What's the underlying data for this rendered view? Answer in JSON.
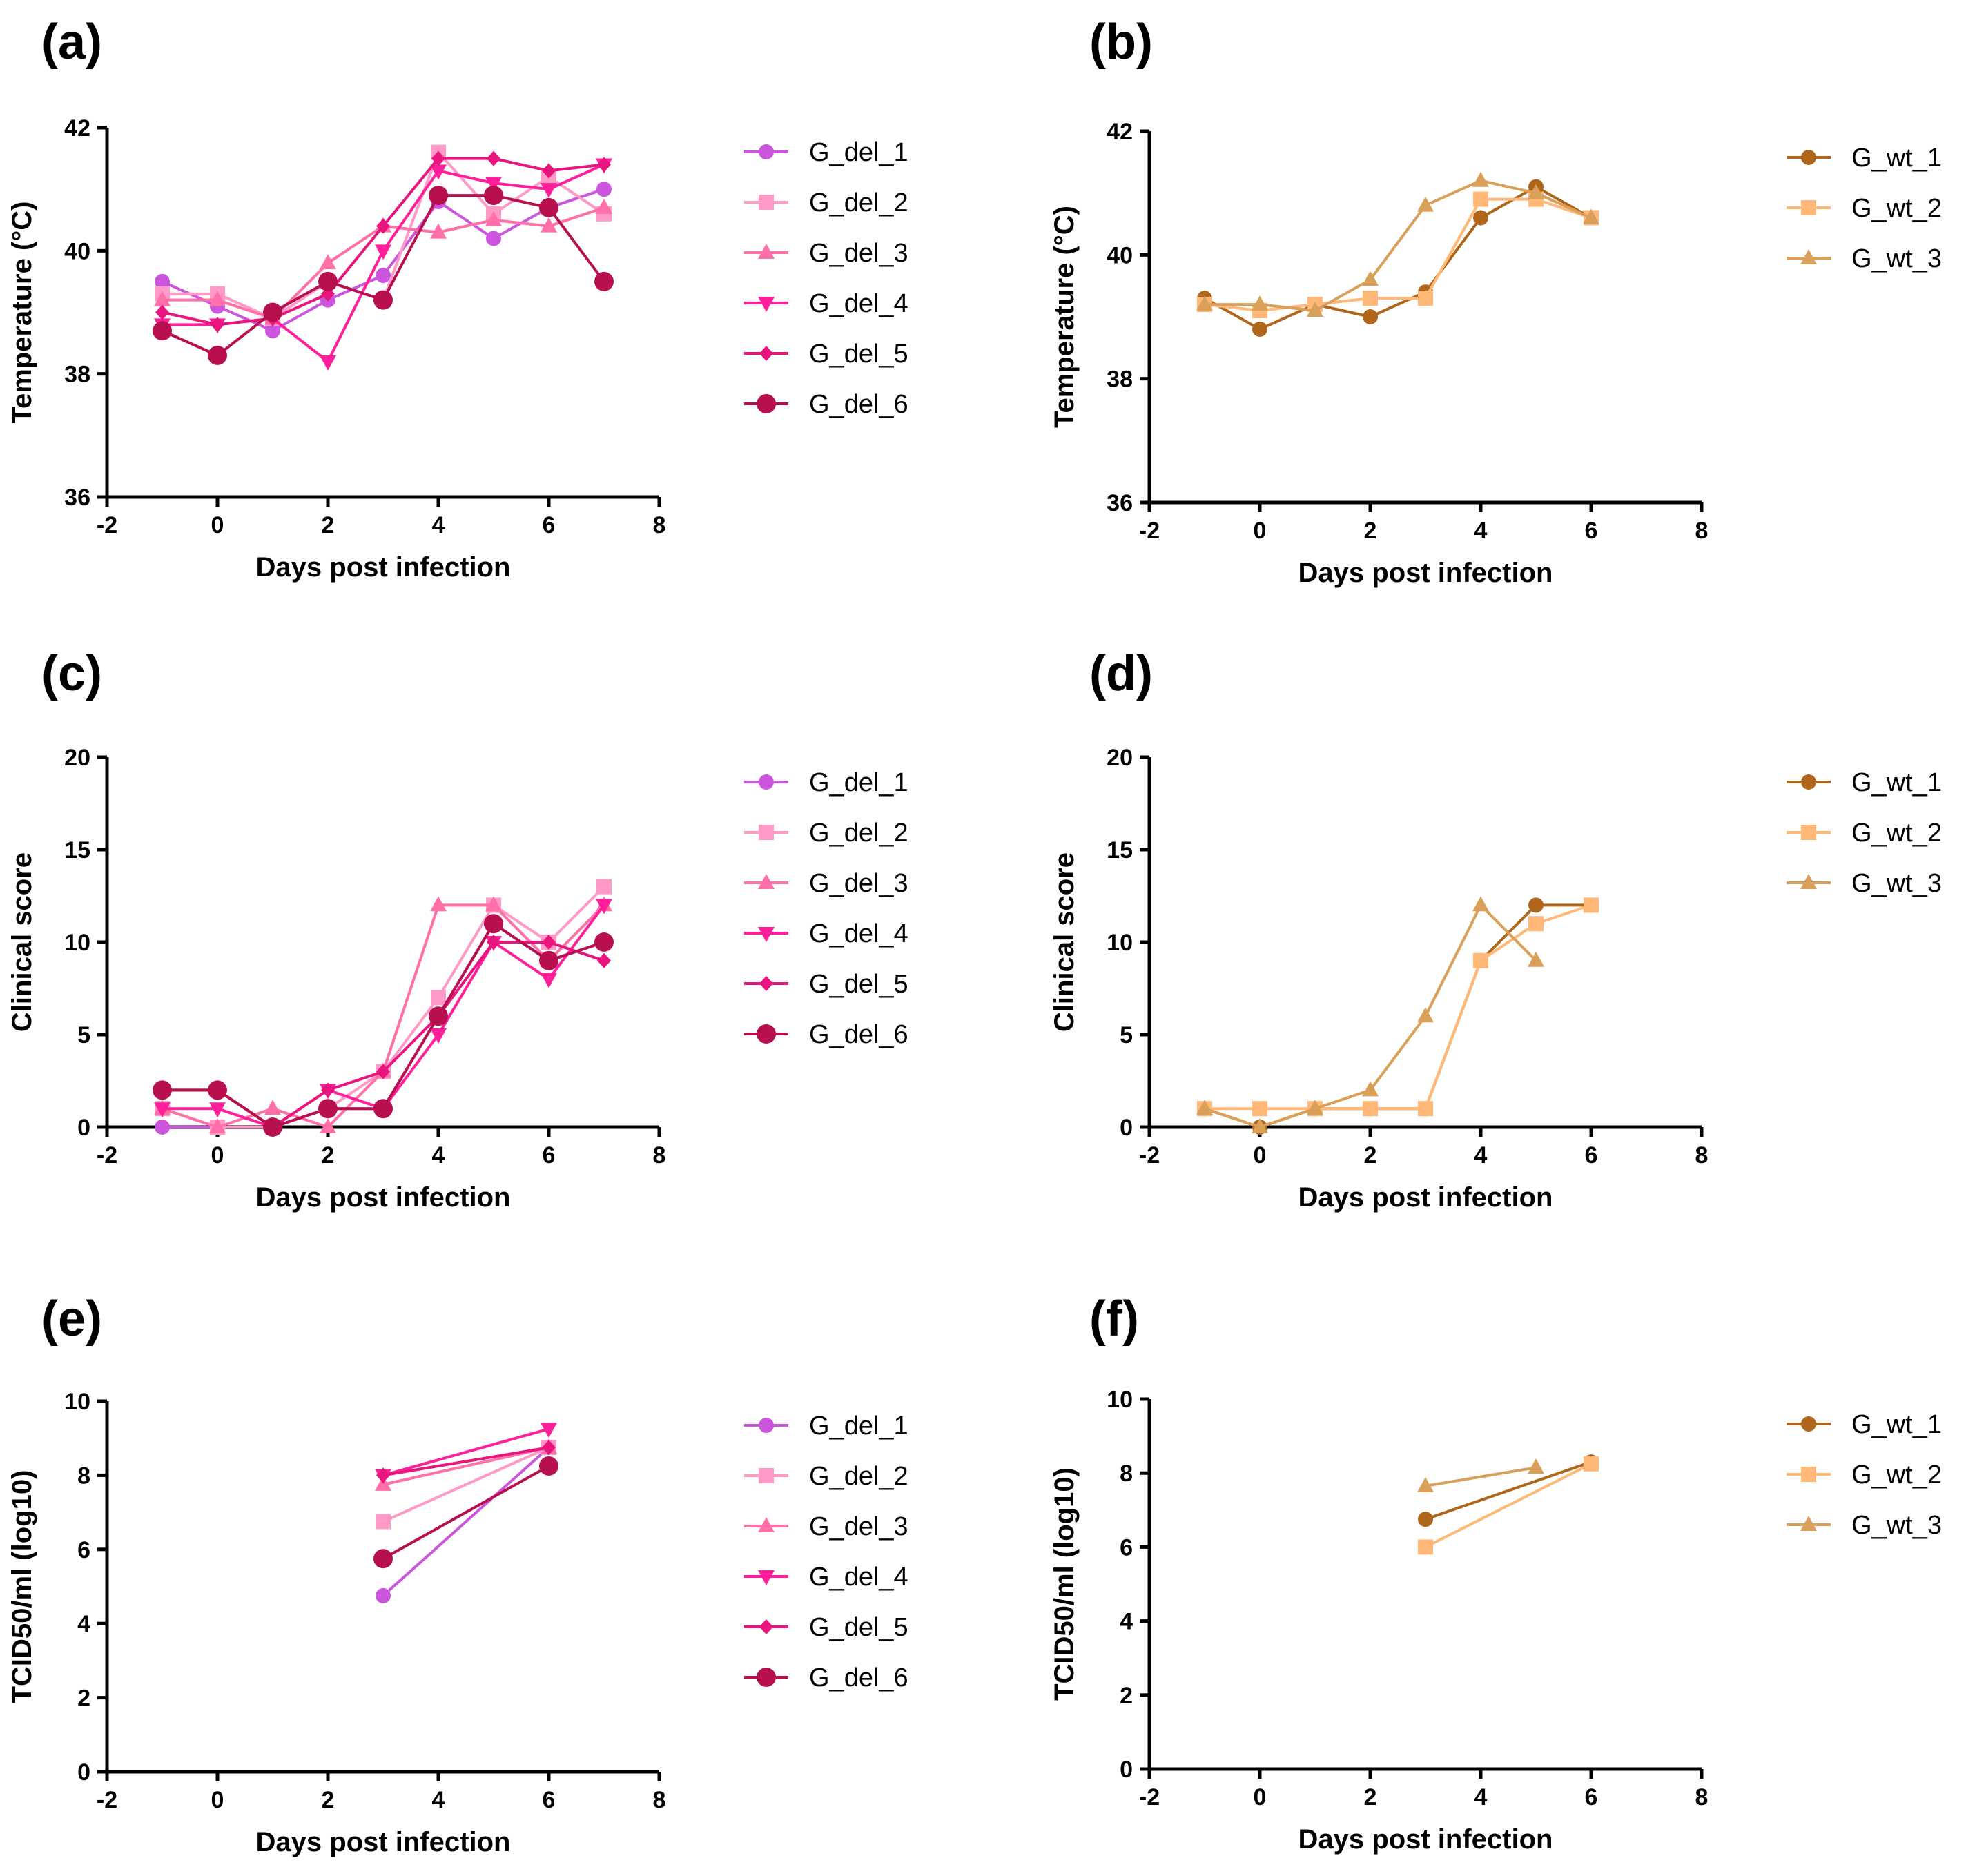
{
  "figure": {
    "series_styles": {
      "G_del_1": {
        "color": "#cc55dd",
        "marker": "circle"
      },
      "G_del_2": {
        "color": "#ff99c8",
        "marker": "square"
      },
      "G_del_3": {
        "color": "#ff6fa8",
        "marker": "triangle-up"
      },
      "G_del_4": {
        "color": "#ff1f9a",
        "marker": "triangle-down"
      },
      "G_del_5": {
        "color": "#e8157e",
        "marker": "diamond"
      },
      "G_del_6": {
        "color": "#b8104e",
        "marker": "circle-large"
      },
      "G_wt_1": {
        "color": "#b0661a",
        "marker": "circle"
      },
      "G_wt_2": {
        "color": "#ffb878",
        "marker": "square"
      },
      "G_wt_3": {
        "color": "#d9a05a",
        "marker": "triangle-up"
      }
    }
  },
  "chart_data": [
    {
      "panel": "(a)",
      "type": "line",
      "xlabel": "Days post infection",
      "ylabel": "Temperature (°C)",
      "xlim": [
        -2,
        8
      ],
      "xticks": [
        -2,
        0,
        2,
        4,
        6,
        8
      ],
      "ylim": [
        36,
        42
      ],
      "yticks": [
        36,
        38,
        40,
        42
      ],
      "legend": "right",
      "series": [
        {
          "name": "G_del_1",
          "x": [
            -1,
            0,
            1,
            2,
            3,
            4,
            5,
            6,
            7
          ],
          "y": [
            39.5,
            39.1,
            38.7,
            39.2,
            39.6,
            40.8,
            40.2,
            40.7,
            41.0
          ]
        },
        {
          "name": "G_del_2",
          "x": [
            -1,
            0,
            1,
            2,
            3,
            4,
            5,
            6,
            7
          ],
          "y": [
            39.3,
            39.3,
            38.9,
            39.5,
            39.2,
            41.6,
            40.6,
            41.2,
            40.6
          ]
        },
        {
          "name": "G_del_3",
          "x": [
            -1,
            0,
            1,
            2,
            3,
            4,
            5,
            6,
            7
          ],
          "y": [
            39.2,
            39.2,
            38.9,
            39.8,
            40.4,
            40.3,
            40.5,
            40.4,
            40.7
          ]
        },
        {
          "name": "G_del_4",
          "x": [
            -1,
            0,
            1,
            2,
            3,
            4,
            5,
            6,
            7
          ],
          "y": [
            38.8,
            38.8,
            38.9,
            38.2,
            40.0,
            41.3,
            41.1,
            41.0,
            41.4
          ]
        },
        {
          "name": "G_del_5",
          "x": [
            -1,
            0,
            1,
            2,
            3,
            4,
            5,
            6,
            7
          ],
          "y": [
            39.0,
            38.8,
            38.9,
            39.3,
            40.4,
            41.5,
            41.5,
            41.3,
            41.4
          ]
        },
        {
          "name": "G_del_6",
          "x": [
            -1,
            0,
            1,
            2,
            3,
            4,
            5,
            6,
            7
          ],
          "y": [
            38.7,
            38.3,
            39.0,
            39.5,
            39.2,
            40.9,
            40.9,
            40.7,
            39.5
          ]
        }
      ]
    },
    {
      "panel": "(b)",
      "type": "line",
      "xlabel": "Days post infection",
      "ylabel": "Temperature (°C)",
      "xlim": [
        -2,
        8
      ],
      "xticks": [
        -2,
        0,
        2,
        4,
        6,
        8
      ],
      "ylim": [
        36,
        42
      ],
      "yticks": [
        36,
        38,
        40,
        42
      ],
      "legend": "right",
      "series": [
        {
          "name": "G_wt_1",
          "x": [
            -1,
            0,
            1,
            2,
            3,
            4,
            5,
            6
          ],
          "y": [
            39.3,
            38.8,
            39.2,
            39.0,
            39.4,
            40.6,
            41.1,
            40.6
          ]
        },
        {
          "name": "G_wt_2",
          "x": [
            -1,
            0,
            1,
            2,
            3,
            4,
            5,
            6
          ],
          "y": [
            39.2,
            39.1,
            39.2,
            39.3,
            39.3,
            40.9,
            40.9,
            40.6
          ]
        },
        {
          "name": "G_wt_3",
          "x": [
            -1,
            0,
            1,
            2,
            3,
            4,
            5,
            6
          ],
          "y": [
            39.2,
            39.2,
            39.1,
            39.6,
            40.8,
            41.2,
            41.0,
            40.6
          ]
        }
      ]
    },
    {
      "panel": "(c)",
      "type": "line",
      "xlabel": "Days post infection",
      "ylabel": "Clinical score",
      "xlim": [
        -2,
        8
      ],
      "xticks": [
        -2,
        0,
        2,
        4,
        6,
        8
      ],
      "ylim": [
        0,
        20
      ],
      "yticks": [
        0,
        5,
        10,
        15,
        20
      ],
      "legend": "right",
      "series": [
        {
          "name": "G_del_1",
          "x": [
            -1,
            0,
            1,
            2,
            3,
            4,
            5,
            6,
            7
          ],
          "y": [
            0,
            0,
            0,
            1,
            1,
            6,
            11,
            9,
            10
          ]
        },
        {
          "name": "G_del_2",
          "x": [
            -1,
            0,
            1,
            2,
            3,
            4,
            5,
            6,
            7
          ],
          "y": [
            1,
            0,
            0,
            1,
            3,
            7,
            12,
            10,
            13
          ]
        },
        {
          "name": "G_del_3",
          "x": [
            -1,
            0,
            1,
            2,
            3,
            4,
            5,
            6,
            7
          ],
          "y": [
            1,
            0,
            1,
            0,
            3,
            12,
            12,
            9,
            12
          ]
        },
        {
          "name": "G_del_4",
          "x": [
            -1,
            0,
            1,
            2,
            3,
            4,
            5,
            6,
            7
          ],
          "y": [
            1,
            1,
            0,
            2,
            1,
            5,
            10,
            8,
            12
          ]
        },
        {
          "name": "G_del_5",
          "x": [
            -1,
            0,
            1,
            2,
            3,
            4,
            5,
            6,
            7
          ],
          "y": [
            2,
            2,
            0,
            2,
            3,
            6,
            10,
            10,
            9
          ]
        },
        {
          "name": "G_del_6",
          "x": [
            -1,
            0,
            1,
            2,
            3,
            4,
            5,
            6,
            7
          ],
          "y": [
            2,
            2,
            0,
            1,
            1,
            6,
            11,
            9,
            10
          ]
        }
      ]
    },
    {
      "panel": "(d)",
      "type": "line",
      "xlabel": "Days post infection",
      "ylabel": "Clinical score",
      "xlim": [
        -2,
        8
      ],
      "xticks": [
        -2,
        0,
        2,
        4,
        6,
        8
      ],
      "ylim": [
        0,
        20
      ],
      "yticks": [
        0,
        5,
        10,
        15,
        20
      ],
      "legend": "right",
      "series": [
        {
          "name": "G_wt_1",
          "x": [
            -1,
            0,
            1,
            2,
            3,
            4,
            5,
            6
          ],
          "y": [
            1,
            0,
            1,
            1,
            1,
            9,
            12,
            12
          ]
        },
        {
          "name": "G_wt_2",
          "x": [
            -1,
            0,
            1,
            2,
            3,
            4,
            5,
            6
          ],
          "y": [
            1,
            1,
            1,
            1,
            1,
            9,
            11,
            12
          ]
        },
        {
          "name": "G_wt_3",
          "x": [
            -1,
            0,
            1,
            2,
            3,
            4,
            5
          ],
          "y": [
            1,
            0,
            1,
            2,
            6,
            12,
            9
          ]
        }
      ]
    },
    {
      "panel": "(e)",
      "type": "line",
      "xlabel": "Days post infection",
      "ylabel": "TCID50/ml (log10)",
      "xlim": [
        -2,
        8
      ],
      "xticks": [
        -2,
        0,
        2,
        4,
        6,
        8
      ],
      "ylim": [
        0,
        10
      ],
      "yticks": [
        0,
        2,
        4,
        6,
        8,
        10
      ],
      "legend": "right",
      "series": [
        {
          "name": "G_del_1",
          "x": [
            3,
            6
          ],
          "y": [
            4.75,
            8.75
          ]
        },
        {
          "name": "G_del_2",
          "x": [
            3,
            6
          ],
          "y": [
            6.75,
            8.75
          ]
        },
        {
          "name": "G_del_3",
          "x": [
            3,
            6
          ],
          "y": [
            7.75,
            8.75
          ]
        },
        {
          "name": "G_del_4",
          "x": [
            3,
            6
          ],
          "y": [
            8.0,
            9.25
          ]
        },
        {
          "name": "G_del_5",
          "x": [
            3,
            6
          ],
          "y": [
            8.0,
            8.75
          ]
        },
        {
          "name": "G_del_6",
          "x": [
            3,
            6
          ],
          "y": [
            5.75,
            8.25
          ]
        }
      ]
    },
    {
      "panel": "(f)",
      "type": "line",
      "xlabel": "Days post infection",
      "ylabel": "TCID50/ml (log10)",
      "xlim": [
        -2,
        8
      ],
      "xticks": [
        -2,
        0,
        2,
        4,
        6,
        8
      ],
      "ylim": [
        0,
        10
      ],
      "yticks": [
        0,
        2,
        4,
        6,
        8,
        10
      ],
      "legend": "right",
      "series": [
        {
          "name": "G_wt_1",
          "x": [
            3,
            6
          ],
          "y": [
            6.75,
            8.3
          ]
        },
        {
          "name": "G_wt_2",
          "x": [
            3,
            6
          ],
          "y": [
            6.0,
            8.25
          ]
        },
        {
          "name": "G_wt_3",
          "x": [
            3,
            5
          ],
          "y": [
            7.65,
            8.15
          ]
        }
      ]
    }
  ]
}
